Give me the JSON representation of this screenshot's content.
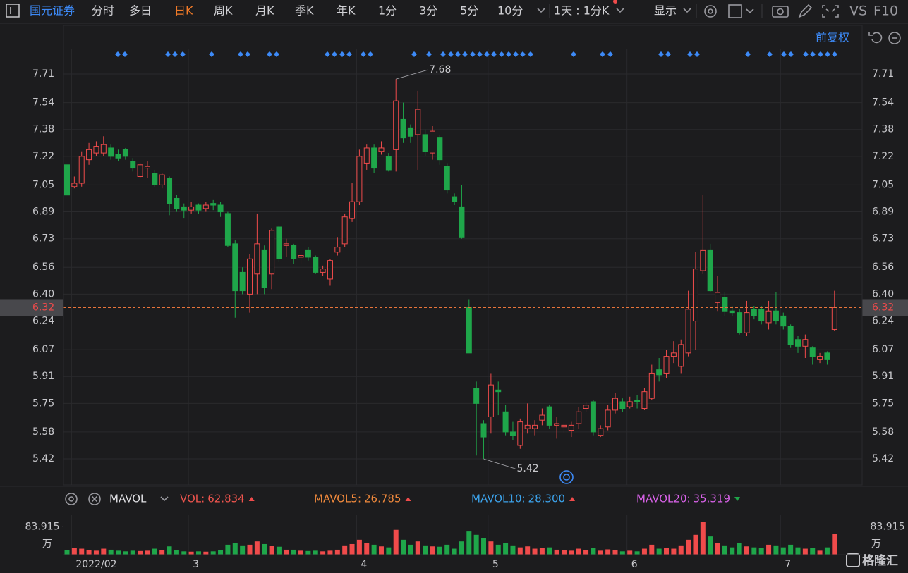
{
  "toolbar": {
    "brand": "国元证券",
    "tabs": [
      {
        "label": "分时"
      },
      {
        "label": "多日"
      },
      {
        "label": "日K",
        "active": true
      },
      {
        "label": "周K"
      },
      {
        "label": "月K"
      },
      {
        "label": "季K"
      },
      {
        "label": "年K"
      },
      {
        "label": "1分"
      },
      {
        "label": "3分"
      },
      {
        "label": "5分"
      },
      {
        "label": "10分"
      }
    ],
    "period": "1天 : 1分K",
    "display": "显示",
    "vs": "VS",
    "f10": "F10"
  },
  "adjust": "前复权",
  "indicator": "MAVOL",
  "footer": {
    "logo": "格隆汇"
  },
  "chart_data": [
    {
      "type": "candlestick",
      "categories": [
        null,
        "2022/02",
        null,
        null,
        null,
        null,
        null,
        null,
        null,
        null,
        null,
        null,
        null,
        null,
        null,
        null,
        null,
        "3",
        null,
        null,
        null,
        null,
        null,
        null,
        null,
        null,
        null,
        null,
        null,
        null,
        null,
        null,
        null,
        null,
        null,
        null,
        null,
        null,
        null,
        null,
        "4",
        null,
        null,
        null,
        null,
        null,
        null,
        null,
        null,
        null,
        null,
        null,
        null,
        null,
        null,
        null,
        null,
        null,
        "5",
        null,
        null,
        null,
        null,
        null,
        null,
        null,
        null,
        null,
        null,
        null,
        null,
        null,
        null,
        null,
        null,
        null,
        null,
        "6",
        null,
        null,
        null,
        null,
        null,
        null,
        null,
        null,
        null,
        null,
        null,
        null,
        null,
        null,
        null,
        null,
        null,
        null,
        null,
        null,
        "7",
        null,
        null,
        null,
        null,
        null,
        null,
        null
      ],
      "open": [
        7.17,
        7.04,
        7.06,
        7.2,
        7.24,
        7.24,
        7.27,
        7.23,
        7.26,
        7.19,
        7.1,
        7.15,
        7.12,
        7.05,
        7.09,
        6.97,
        6.92,
        6.9,
        6.93,
        6.91,
        6.94,
        6.93,
        6.88,
        6.7,
        6.53,
        6.4,
        6.52,
        6.66,
        6.52,
        6.8,
        6.69,
        6.69,
        6.62,
        6.66,
        6.62,
        6.53,
        6.49,
        6.65,
        6.7,
        6.85,
        6.95,
        7.18,
        7.27,
        7.25,
        7.22,
        7.26,
        7.44,
        7.39,
        7.35,
        7.35,
        7.24,
        7.33,
        7.16,
        6.98,
        6.92,
        6.32,
        5.84,
        5.63,
        5.67,
        5.83,
        5.7,
        5.58,
        5.5,
        5.6,
        5.6,
        5.65,
        5.73,
        5.62,
        5.61,
        5.59,
        5.63,
        5.72,
        5.76,
        5.56,
        5.61,
        5.71,
        5.76,
        5.73,
        5.77,
        5.72,
        5.78,
        5.95,
        5.93,
        6.03,
        5.97,
        6.05,
        6.24,
        6.54,
        6.66,
        6.35,
        6.38,
        6.3,
        6.29,
        6.17,
        6.31,
        6.31,
        6.23,
        6.3,
        6.27,
        6.21,
        6.13,
        6.09,
        6.08,
        6.01,
        6.05,
        6.19
      ],
      "high": [
        7.17,
        7.1,
        7.25,
        7.3,
        7.31,
        7.34,
        7.29,
        7.26,
        7.27,
        7.21,
        7.18,
        7.19,
        7.14,
        7.12,
        7.1,
        6.99,
        6.94,
        6.95,
        6.94,
        6.95,
        6.96,
        6.95,
        6.89,
        6.72,
        6.56,
        6.64,
        6.88,
        6.69,
        6.79,
        6.81,
        6.73,
        6.7,
        6.65,
        6.68,
        6.63,
        6.57,
        6.61,
        6.74,
        6.88,
        7.06,
        7.26,
        7.29,
        7.29,
        7.31,
        7.24,
        7.68,
        7.54,
        7.41,
        7.61,
        7.38,
        7.4,
        7.35,
        7.18,
        7.0,
        7.05,
        6.37,
        5.88,
        5.65,
        5.93,
        5.88,
        5.74,
        5.64,
        5.66,
        5.75,
        5.65,
        5.72,
        5.74,
        5.67,
        5.64,
        5.64,
        5.73,
        5.76,
        5.77,
        5.62,
        5.74,
        5.81,
        5.78,
        5.79,
        5.8,
        5.84,
        5.98,
        6.02,
        6.07,
        6.12,
        6.13,
        6.42,
        6.65,
        6.99,
        6.7,
        6.51,
        6.41,
        6.33,
        6.31,
        6.36,
        6.33,
        6.33,
        6.36,
        6.41,
        6.29,
        6.22,
        6.15,
        6.16,
        6.09,
        6.05,
        6.06,
        6.42
      ],
      "low": [
        6.99,
        7.03,
        7.04,
        7.17,
        7.22,
        7.22,
        7.2,
        7.19,
        7.2,
        7.13,
        7.09,
        7.09,
        7.04,
        7.03,
        6.87,
        6.89,
        6.85,
        6.88,
        6.88,
        6.89,
        6.9,
        6.86,
        6.68,
        6.26,
        6.4,
        6.29,
        6.4,
        6.4,
        6.43,
        6.59,
        6.62,
        6.58,
        6.58,
        6.6,
        6.52,
        6.51,
        6.45,
        6.63,
        6.68,
        6.83,
        6.93,
        7.14,
        7.12,
        7.23,
        7.13,
        7.13,
        7.3,
        7.3,
        7.14,
        7.22,
        7.2,
        7.17,
        7.0,
        6.93,
        6.73,
        6.05,
        5.44,
        5.42,
        5.57,
        5.68,
        5.56,
        5.53,
        5.48,
        5.57,
        5.56,
        5.62,
        5.6,
        5.54,
        5.57,
        5.55,
        5.6,
        5.7,
        5.56,
        5.55,
        5.59,
        5.69,
        5.7,
        5.72,
        5.72,
        5.71,
        5.77,
        5.88,
        5.9,
        5.99,
        5.93,
        6.03,
        6.07,
        6.52,
        6.41,
        6.3,
        6.27,
        6.27,
        6.16,
        6.15,
        6.25,
        6.22,
        6.19,
        6.22,
        6.19,
        6.08,
        6.05,
        6.02,
        5.98,
        5.99,
        5.98,
        6.18
      ],
      "close": [
        6.99,
        7.06,
        7.22,
        7.26,
        7.28,
        7.29,
        7.22,
        7.21,
        7.22,
        7.15,
        7.17,
        7.16,
        7.05,
        7.11,
        6.94,
        6.91,
        6.9,
        6.92,
        6.9,
        6.93,
        6.93,
        6.89,
        6.69,
        6.42,
        6.42,
        6.61,
        6.7,
        6.44,
        6.78,
        6.61,
        6.7,
        6.61,
        6.63,
        6.62,
        6.53,
        6.55,
        6.6,
        6.68,
        6.86,
        6.95,
        7.22,
        7.27,
        7.15,
        7.27,
        7.14,
        7.55,
        7.33,
        7.34,
        7.5,
        7.25,
        7.37,
        7.2,
        7.02,
        6.95,
        6.74,
        6.05,
        5.75,
        5.55,
        5.86,
        5.82,
        5.58,
        5.56,
        5.64,
        5.62,
        5.62,
        5.68,
        5.62,
        5.63,
        5.62,
        5.62,
        5.7,
        5.74,
        5.58,
        5.6,
        5.71,
        5.78,
        5.72,
        5.76,
        5.76,
        5.82,
        5.93,
        5.92,
        6.03,
        6.05,
        6.1,
        6.31,
        6.55,
        6.66,
        6.42,
        6.41,
        6.3,
        6.29,
        6.17,
        6.29,
        6.27,
        6.24,
        6.3,
        6.24,
        6.21,
        6.1,
        6.09,
        6.13,
        6.03,
        6.03,
        6.01,
        6.32
      ],
      "ylim": [
        5.265,
        7.857
      ],
      "yticks": [
        7.71,
        7.54,
        7.38,
        7.22,
        7.05,
        6.89,
        6.73,
        6.56,
        {
          "value": 6.4,
          "label": "6.40"
        },
        6.24,
        6.07,
        5.91,
        5.75,
        5.58,
        5.42
      ],
      "grid": true,
      "up_color": "#f04b4b",
      "down_color": "#1fa64a",
      "last_price": 6.32,
      "last_price_color": "#e8743a"
    },
    {
      "type": "bar",
      "values": [
        14,
        20,
        18,
        14,
        12,
        18,
        15,
        12,
        10,
        12,
        11,
        12,
        18,
        13,
        25,
        14,
        10,
        9,
        10,
        9,
        10,
        14,
        30,
        35,
        28,
        30,
        40,
        32,
        26,
        24,
        15,
        15,
        12,
        11,
        12,
        10,
        12,
        15,
        28,
        32,
        45,
        35,
        30,
        25,
        22,
        75,
        45,
        30,
        40,
        28,
        25,
        24,
        30,
        18,
        40,
        70,
        60,
        50,
        40,
        30,
        35,
        28,
        22,
        25,
        18,
        20,
        22,
        15,
        14,
        12,
        18,
        14,
        20,
        12,
        16,
        14,
        10,
        12,
        10,
        18,
        30,
        18,
        20,
        18,
        28,
        45,
        60,
        98,
        55,
        35,
        28,
        22,
        35,
        25,
        22,
        20,
        30,
        28,
        22,
        30,
        22,
        18,
        20,
        12,
        22,
        62.834
      ],
      "ylim": [
        0,
        100
      ],
      "yticks": [
        83.915
      ],
      "unit": "万",
      "legend": [
        {
          "name": "VOL:",
          "value": 62.834,
          "color": "#f0554e",
          "trend": "up"
        },
        {
          "name": "MAVOL5:",
          "value": 26.785,
          "color": "#f0893c",
          "trend": "up"
        },
        {
          "name": "MAVOL10:",
          "value": 28.3,
          "value_label": "28.300",
          "color": "#3ca2ea",
          "trend": "up"
        },
        {
          "name": "MAVOL20:",
          "value": 35.319,
          "color": "#d862e8",
          "trend": "down"
        }
      ]
    }
  ]
}
